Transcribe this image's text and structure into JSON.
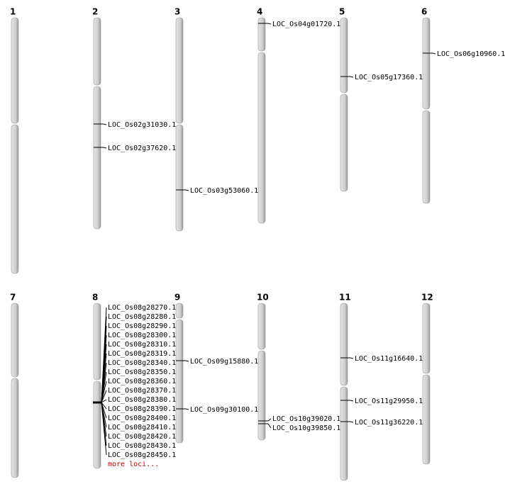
{
  "chromosomes": [
    {
      "label": "1",
      "loci": []
    },
    {
      "label": "2",
      "loci": [
        "LOC_Os02g31030.1",
        "LOC_Os02g37620.1"
      ]
    },
    {
      "label": "3",
      "loci": [
        "LOC_Os03g53060.1"
      ]
    },
    {
      "label": "4",
      "loci": [
        "LOC_Os04g01720.1"
      ]
    },
    {
      "label": "5",
      "loci": [
        "LOC_Os05g17360.1"
      ]
    },
    {
      "label": "6",
      "loci": [
        "LOC_Os06g10960.1"
      ]
    },
    {
      "label": "7",
      "loci": []
    },
    {
      "label": "8",
      "loci": [
        "LOC_Os08g28270.1",
        "LOC_Os08g28280.1",
        "LOC_Os08g28290.1",
        "LOC_Os08g28300.1",
        "LOC_Os08g28310.1",
        "LOC_Os08g28319.1",
        "LOC_Os08g28340.1",
        "LOC_Os08g28350.1",
        "LOC_Os08g28360.1",
        "LOC_Os08g28370.1",
        "LOC_Os08g28380.1",
        "LOC_Os08g28390.1",
        "LOC_Os08g28400.1",
        "LOC_Os08g28410.1",
        "LOC_Os08g28420.1",
        "LOC_Os08g28430.1",
        "LOC_Os08g28450.1"
      ],
      "more": "more loci..."
    },
    {
      "label": "9",
      "loci": [
        "LOC_Os09g15880.1",
        "LOC_Os09g30100.1"
      ]
    },
    {
      "label": "10",
      "loci": [
        "LOC_Os10g39020.1",
        "LOC_Os10g39850.1"
      ]
    },
    {
      "label": "11",
      "loci": [
        "LOC_Os11g16640.1",
        "LOC_Os11g29950.1",
        "LOC_Os11g36220.1"
      ]
    },
    {
      "label": "12",
      "loci": []
    }
  ]
}
